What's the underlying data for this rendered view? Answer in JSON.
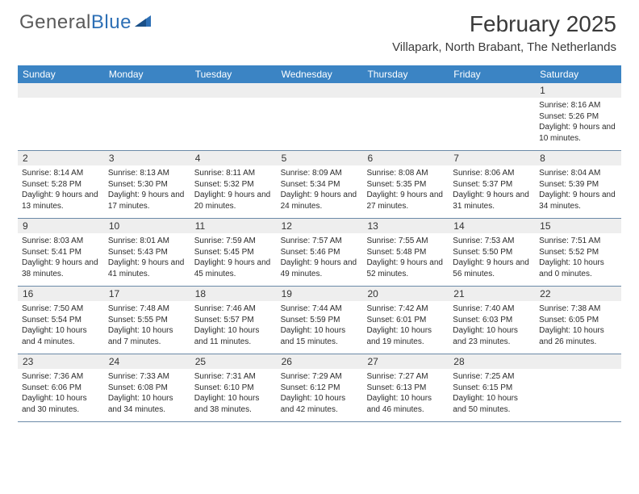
{
  "logo": {
    "text1": "General",
    "text2": "Blue"
  },
  "title": "February 2025",
  "location": "Villapark, North Brabant, The Netherlands",
  "colors": {
    "header_bar": "#3b84c4",
    "band": "#eeeeee",
    "rule": "#6b8aa8",
    "logo_gray": "#5a5a5a",
    "logo_blue": "#2d6fb5"
  },
  "daysOfWeek": [
    "Sunday",
    "Monday",
    "Tuesday",
    "Wednesday",
    "Thursday",
    "Friday",
    "Saturday"
  ],
  "weeks": [
    [
      {
        "n": "",
        "sr": "",
        "ss": "",
        "dl": ""
      },
      {
        "n": "",
        "sr": "",
        "ss": "",
        "dl": ""
      },
      {
        "n": "",
        "sr": "",
        "ss": "",
        "dl": ""
      },
      {
        "n": "",
        "sr": "",
        "ss": "",
        "dl": ""
      },
      {
        "n": "",
        "sr": "",
        "ss": "",
        "dl": ""
      },
      {
        "n": "",
        "sr": "",
        "ss": "",
        "dl": ""
      },
      {
        "n": "1",
        "sr": "Sunrise: 8:16 AM",
        "ss": "Sunset: 5:26 PM",
        "dl": "Daylight: 9 hours and 10 minutes."
      }
    ],
    [
      {
        "n": "2",
        "sr": "Sunrise: 8:14 AM",
        "ss": "Sunset: 5:28 PM",
        "dl": "Daylight: 9 hours and 13 minutes."
      },
      {
        "n": "3",
        "sr": "Sunrise: 8:13 AM",
        "ss": "Sunset: 5:30 PM",
        "dl": "Daylight: 9 hours and 17 minutes."
      },
      {
        "n": "4",
        "sr": "Sunrise: 8:11 AM",
        "ss": "Sunset: 5:32 PM",
        "dl": "Daylight: 9 hours and 20 minutes."
      },
      {
        "n": "5",
        "sr": "Sunrise: 8:09 AM",
        "ss": "Sunset: 5:34 PM",
        "dl": "Daylight: 9 hours and 24 minutes."
      },
      {
        "n": "6",
        "sr": "Sunrise: 8:08 AM",
        "ss": "Sunset: 5:35 PM",
        "dl": "Daylight: 9 hours and 27 minutes."
      },
      {
        "n": "7",
        "sr": "Sunrise: 8:06 AM",
        "ss": "Sunset: 5:37 PM",
        "dl": "Daylight: 9 hours and 31 minutes."
      },
      {
        "n": "8",
        "sr": "Sunrise: 8:04 AM",
        "ss": "Sunset: 5:39 PM",
        "dl": "Daylight: 9 hours and 34 minutes."
      }
    ],
    [
      {
        "n": "9",
        "sr": "Sunrise: 8:03 AM",
        "ss": "Sunset: 5:41 PM",
        "dl": "Daylight: 9 hours and 38 minutes."
      },
      {
        "n": "10",
        "sr": "Sunrise: 8:01 AM",
        "ss": "Sunset: 5:43 PM",
        "dl": "Daylight: 9 hours and 41 minutes."
      },
      {
        "n": "11",
        "sr": "Sunrise: 7:59 AM",
        "ss": "Sunset: 5:45 PM",
        "dl": "Daylight: 9 hours and 45 minutes."
      },
      {
        "n": "12",
        "sr": "Sunrise: 7:57 AM",
        "ss": "Sunset: 5:46 PM",
        "dl": "Daylight: 9 hours and 49 minutes."
      },
      {
        "n": "13",
        "sr": "Sunrise: 7:55 AM",
        "ss": "Sunset: 5:48 PM",
        "dl": "Daylight: 9 hours and 52 minutes."
      },
      {
        "n": "14",
        "sr": "Sunrise: 7:53 AM",
        "ss": "Sunset: 5:50 PM",
        "dl": "Daylight: 9 hours and 56 minutes."
      },
      {
        "n": "15",
        "sr": "Sunrise: 7:51 AM",
        "ss": "Sunset: 5:52 PM",
        "dl": "Daylight: 10 hours and 0 minutes."
      }
    ],
    [
      {
        "n": "16",
        "sr": "Sunrise: 7:50 AM",
        "ss": "Sunset: 5:54 PM",
        "dl": "Daylight: 10 hours and 4 minutes."
      },
      {
        "n": "17",
        "sr": "Sunrise: 7:48 AM",
        "ss": "Sunset: 5:55 PM",
        "dl": "Daylight: 10 hours and 7 minutes."
      },
      {
        "n": "18",
        "sr": "Sunrise: 7:46 AM",
        "ss": "Sunset: 5:57 PM",
        "dl": "Daylight: 10 hours and 11 minutes."
      },
      {
        "n": "19",
        "sr": "Sunrise: 7:44 AM",
        "ss": "Sunset: 5:59 PM",
        "dl": "Daylight: 10 hours and 15 minutes."
      },
      {
        "n": "20",
        "sr": "Sunrise: 7:42 AM",
        "ss": "Sunset: 6:01 PM",
        "dl": "Daylight: 10 hours and 19 minutes."
      },
      {
        "n": "21",
        "sr": "Sunrise: 7:40 AM",
        "ss": "Sunset: 6:03 PM",
        "dl": "Daylight: 10 hours and 23 minutes."
      },
      {
        "n": "22",
        "sr": "Sunrise: 7:38 AM",
        "ss": "Sunset: 6:05 PM",
        "dl": "Daylight: 10 hours and 26 minutes."
      }
    ],
    [
      {
        "n": "23",
        "sr": "Sunrise: 7:36 AM",
        "ss": "Sunset: 6:06 PM",
        "dl": "Daylight: 10 hours and 30 minutes."
      },
      {
        "n": "24",
        "sr": "Sunrise: 7:33 AM",
        "ss": "Sunset: 6:08 PM",
        "dl": "Daylight: 10 hours and 34 minutes."
      },
      {
        "n": "25",
        "sr": "Sunrise: 7:31 AM",
        "ss": "Sunset: 6:10 PM",
        "dl": "Daylight: 10 hours and 38 minutes."
      },
      {
        "n": "26",
        "sr": "Sunrise: 7:29 AM",
        "ss": "Sunset: 6:12 PM",
        "dl": "Daylight: 10 hours and 42 minutes."
      },
      {
        "n": "27",
        "sr": "Sunrise: 7:27 AM",
        "ss": "Sunset: 6:13 PM",
        "dl": "Daylight: 10 hours and 46 minutes."
      },
      {
        "n": "28",
        "sr": "Sunrise: 7:25 AM",
        "ss": "Sunset: 6:15 PM",
        "dl": "Daylight: 10 hours and 50 minutes."
      },
      {
        "n": "",
        "sr": "",
        "ss": "",
        "dl": ""
      }
    ]
  ]
}
